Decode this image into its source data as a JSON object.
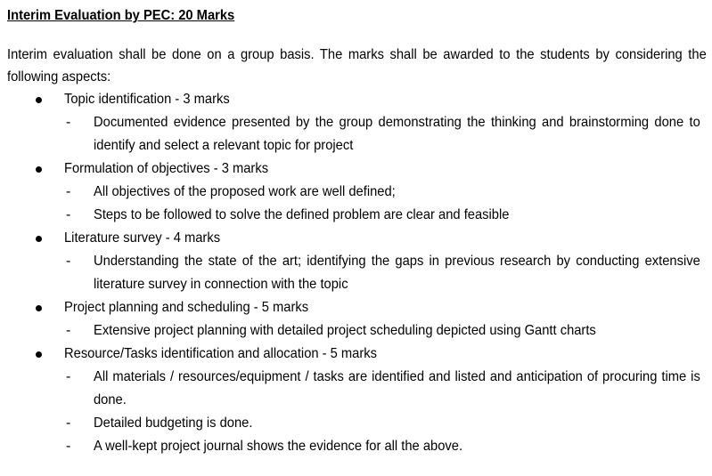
{
  "document": {
    "heading": "Interim Evaluation by PEC: 20 Marks",
    "intro": "Interim evaluation shall be done on a group basis. The marks shall be awarded to the students by considering the following aspects:",
    "dash": "-",
    "items": [
      {
        "label": "Topic identification - 3 marks",
        "subs": [
          "Documented evidence presented by the group demonstrating the thinking and brainstorming done to identify and select a relevant topic for project"
        ]
      },
      {
        "label": "Formulation of objectives - 3 marks",
        "subs": [
          "All objectives of the proposed work are well defined;",
          "Steps to be followed to solve the defined problem are clear and feasible"
        ]
      },
      {
        "label": "Literature survey - 4 marks",
        "subs": [
          "Understanding the state of the art; identifying the gaps in previous research by conducting extensive literature survey in connection with the topic"
        ]
      },
      {
        "label": "Project planning and scheduling - 5 marks",
        "subs": [
          "Extensive project planning with detailed project scheduling depicted using Gantt charts"
        ]
      },
      {
        "label": "Resource/Tasks identification and allocation - 5 marks",
        "subs": [
          "All materials / resources/equipment / tasks are identified and listed and anticipation of procuring time is done.",
          "Detailed budgeting is done.",
          "A well-kept project journal shows the evidence for all the above."
        ]
      }
    ]
  }
}
